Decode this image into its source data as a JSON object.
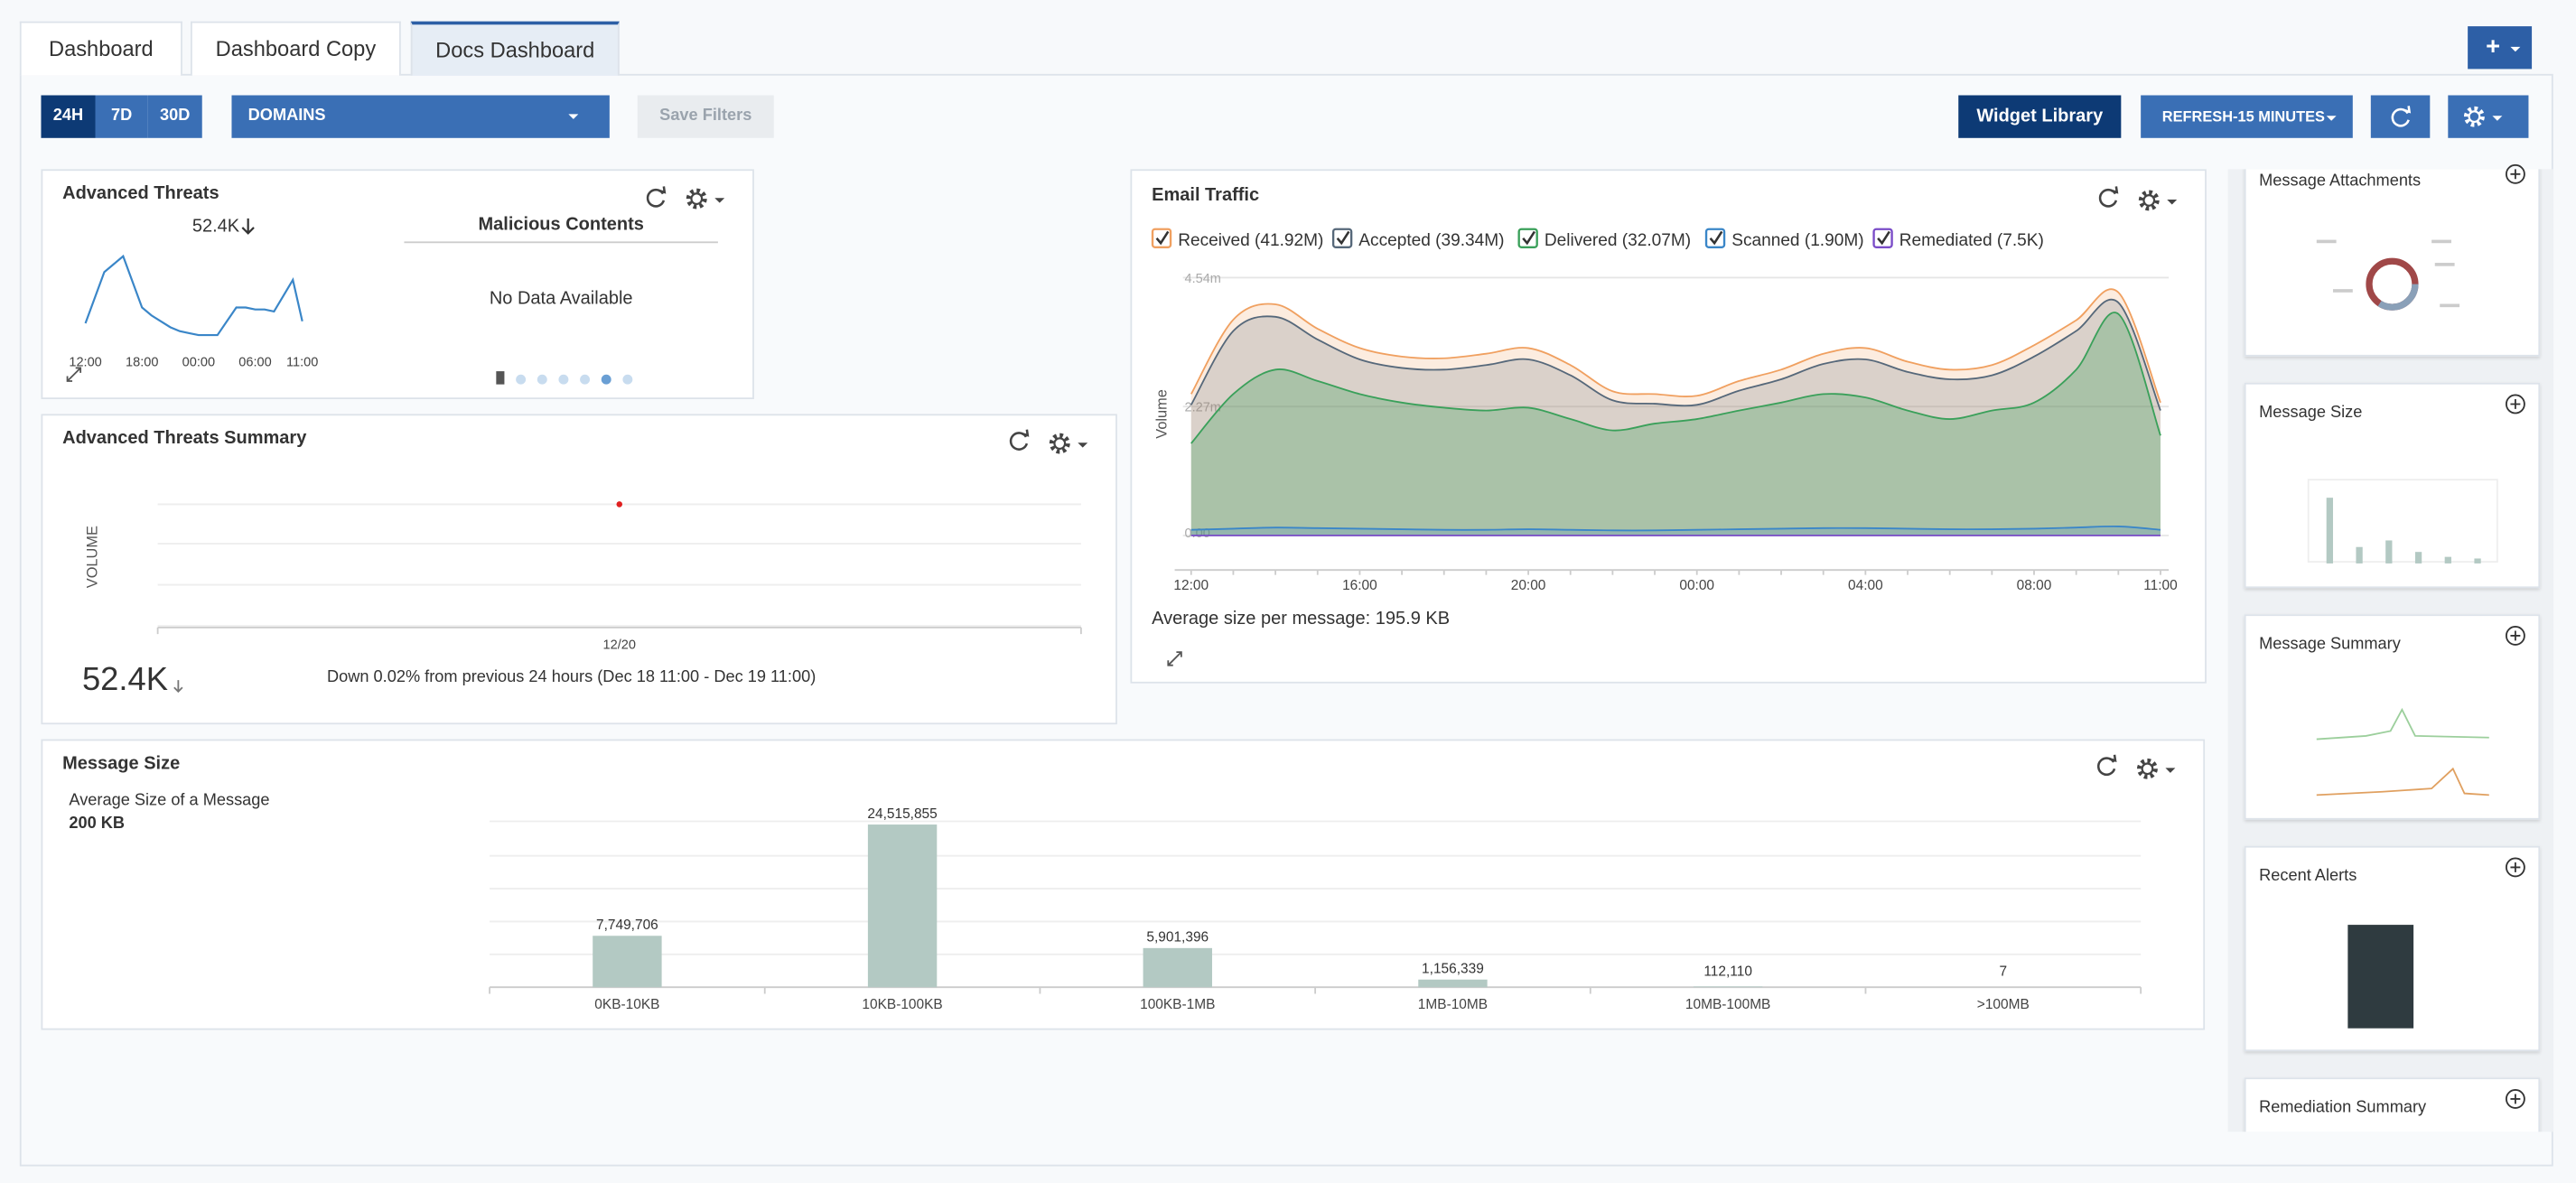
{
  "tabs": [
    "Dashboard",
    "Dashboard Copy",
    "Docs Dashboard"
  ],
  "toolbar": {
    "add_button": "+",
    "ranges": [
      "24H",
      "7D",
      "30D"
    ],
    "domain_filter": "DOMAINS",
    "save_filters": "Save Filters",
    "widget_library": "Widget Library",
    "refresh_interval": "REFRESH-15 MINUTES"
  },
  "advanced_threats": {
    "title": "Advanced Threats",
    "total": "52.4K",
    "chart": {
      "type": "line",
      "categories": [
        "12:00",
        null,
        null,
        null,
        null,
        null,
        "18:00",
        null,
        null,
        null,
        null,
        null,
        "00:00",
        null,
        null,
        null,
        null,
        null,
        "06:00",
        null,
        null,
        null,
        null,
        "11:00"
      ],
      "values": [
        1.1,
        2.4,
        3.7,
        4.1,
        4.5,
        3.2,
        1.9,
        1.5,
        1.2,
        0.9,
        0.7,
        0.6,
        0.5,
        0.5,
        0.5,
        1.2,
        1.9,
        1.9,
        1.8,
        1.8,
        1.7,
        2.5,
        3.3,
        1.2
      ],
      "ylim": [
        0,
        5
      ],
      "color": "#3a86c8"
    },
    "malicious_contents": {
      "title": "Malicious Contents",
      "message": "No Data Available"
    }
  },
  "threats_summary": {
    "title": "Advanced Threats Summary",
    "y_label": "VOLUME",
    "categories": [
      "12/20"
    ],
    "total": "52.4K",
    "change_note": "Down 0.02% from previous 24 hours (Dec 18 11:00 - Dec 19 11:00)"
  },
  "email_traffic": {
    "title": "Email Traffic",
    "chart": {
      "type": "area",
      "y_label": "Volume",
      "categories": [
        "12:00",
        null,
        null,
        null,
        "16:00",
        null,
        null,
        null,
        "20:00",
        null,
        null,
        null,
        "00:00",
        null,
        null,
        null,
        "04:00",
        null,
        null,
        null,
        "08:00",
        null,
        null,
        "11:00"
      ],
      "ylim": [
        0,
        4.54
      ],
      "yticks": [
        {
          "value": 0,
          "label": "0.00"
        },
        {
          "value": 2.27,
          "label": "2.27m"
        },
        {
          "value": 4.54,
          "label": "4.54m"
        }
      ],
      "series": [
        {
          "name": "Received (41.92M)",
          "color": "#f0a060",
          "values": [
            2.49,
            3.8,
            4.07,
            3.64,
            3.3,
            3.15,
            3.12,
            3.2,
            3.3,
            3.0,
            2.54,
            2.49,
            2.46,
            2.72,
            2.92,
            3.2,
            3.3,
            3.06,
            2.92,
            3.0,
            3.35,
            3.79,
            4.28,
            2.34
          ]
        },
        {
          "name": "Accepted (39.34M)",
          "color": "#56687a",
          "values": [
            2.3,
            3.6,
            3.85,
            3.45,
            3.1,
            2.95,
            2.92,
            3.0,
            3.1,
            2.82,
            2.38,
            2.32,
            2.3,
            2.55,
            2.75,
            3.02,
            3.1,
            2.88,
            2.75,
            2.82,
            3.15,
            3.6,
            4.1,
            2.2
          ]
        },
        {
          "name": "Delivered (32.07M)",
          "color": "#3aa05a",
          "values": [
            1.62,
            2.49,
            2.92,
            2.72,
            2.49,
            2.34,
            2.25,
            2.2,
            2.25,
            2.05,
            1.85,
            1.97,
            2.05,
            2.2,
            2.34,
            2.49,
            2.43,
            2.2,
            2.05,
            2.2,
            2.34,
            2.92,
            3.9,
            1.76
          ]
        },
        {
          "name": "Scanned (1.90M)",
          "color": "#3a86c8",
          "values": [
            0.1,
            0.12,
            0.14,
            0.13,
            0.12,
            0.11,
            0.1,
            0.1,
            0.11,
            0.1,
            0.09,
            0.09,
            0.1,
            0.11,
            0.12,
            0.13,
            0.13,
            0.12,
            0.11,
            0.11,
            0.12,
            0.14,
            0.16,
            0.1
          ]
        },
        {
          "name": "Remediated (7.5K)",
          "color": "#7a4cc8",
          "values": [
            0.0003,
            0.0003,
            0.0003,
            0.0003,
            0.0003,
            0.0003,
            0.0003,
            0.0003,
            0.0003,
            0.0003,
            0.0003,
            0.0003,
            0.0003,
            0.0003,
            0.0003,
            0.0003,
            0.0003,
            0.0003,
            0.0003,
            0.0003,
            0.0003,
            0.0003,
            0.0003,
            0.0003
          ]
        }
      ]
    },
    "footer": "Average size per message: 195.9 KB"
  },
  "message_size": {
    "title": "Message Size",
    "average_label": "Average Size of a Message",
    "average_value": "200 KB",
    "chart": {
      "type": "bar",
      "categories": [
        "0KB-10KB",
        "10KB-100KB",
        "100KB-1MB",
        "1MB-10MB",
        "10MB-100MB",
        ">100MB"
      ],
      "values": [
        7749706,
        24515855,
        5901396,
        1156339,
        112110,
        7
      ],
      "value_labels": [
        "7,749,706",
        "24,515,855",
        "5,901,396",
        "1,156,339",
        "112,110",
        "7"
      ],
      "ylim": [
        0,
        25000000
      ],
      "color": "#b3c9c3"
    }
  },
  "sidebar": [
    "Message Attachments",
    "Message Size",
    "Message Summary",
    "Recent Alerts",
    "Remediation Summary"
  ]
}
